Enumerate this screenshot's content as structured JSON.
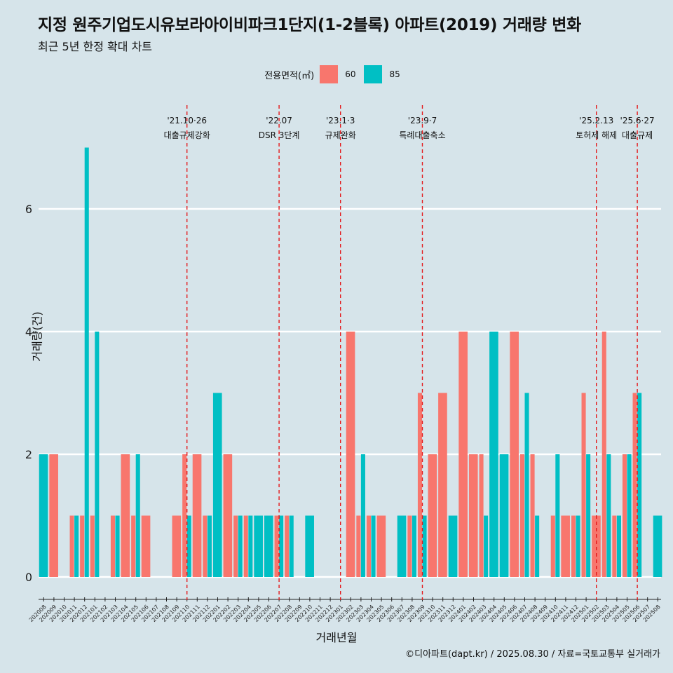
{
  "title": "지정 원주기업도시유보라아이비파크1단지(1-2블록) 아파트(2019) 거래량 변화",
  "subtitle": "최근 5년 한정 확대 차트",
  "caption": "©디아파트(dapt.kr) / 2025.08.30 / 자료=국토교통부 실거래가",
  "legend": {
    "title": "전용면적(㎡)",
    "items": [
      {
        "label": "60",
        "color": "#F8766D"
      },
      {
        "label": "85",
        "color": "#00BFC4"
      }
    ]
  },
  "chart_data": {
    "type": "bar",
    "title": "지정 원주기업도시유보라아이비파크1단지(1-2블록) 아파트(2019) 거래량 변화",
    "xlabel": "거래년월",
    "ylabel": "거래량(건)",
    "ylim": [
      0,
      7.5
    ],
    "yticks": [
      0,
      2,
      4,
      6
    ],
    "grid": true,
    "legend_position": "top",
    "categories": [
      "202008",
      "202009",
      "202010",
      "202011",
      "202012",
      "202101",
      "202102",
      "202103",
      "202104",
      "202105",
      "202106",
      "202107",
      "202108",
      "202109",
      "202110",
      "202111",
      "202112",
      "202201",
      "202202",
      "202203",
      "202204",
      "202205",
      "202206",
      "202207",
      "202208",
      "202209",
      "202210",
      "202211",
      "202212",
      "202301",
      "202302",
      "202303",
      "202304",
      "202305",
      "202306",
      "202307",
      "202308",
      "202309",
      "202310",
      "202311",
      "202312",
      "202401",
      "202402",
      "202403",
      "202404",
      "202405",
      "202406",
      "202407",
      "202408",
      "202409",
      "202410",
      "202411",
      "202412",
      "202501",
      "202502",
      "202503",
      "202504",
      "202505",
      "202506",
      "202507",
      "202508"
    ],
    "series": [
      {
        "name": "60",
        "color": "#F8766D",
        "values": [
          0,
          2,
          0,
          1,
          1,
          1,
          0,
          1,
          2,
          1,
          1,
          0,
          0,
          1,
          2,
          2,
          1,
          0,
          2,
          1,
          1,
          0,
          0,
          1,
          1,
          0,
          0,
          0,
          0,
          0,
          4,
          1,
          1,
          1,
          0,
          0,
          1,
          3,
          2,
          3,
          0,
          4,
          2,
          2,
          0,
          0,
          4,
          2,
          2,
          0,
          1,
          1,
          1,
          3,
          1,
          4,
          1,
          2,
          3,
          0,
          0
        ]
      },
      {
        "name": "85",
        "color": "#00BFC4",
        "values": [
          2,
          0,
          0,
          1,
          7,
          4,
          0,
          1,
          0,
          2,
          0,
          0,
          0,
          0,
          1,
          0,
          1,
          3,
          0,
          1,
          1,
          1,
          1,
          1,
          1,
          0,
          1,
          0,
          0,
          0,
          0,
          2,
          1,
          0,
          0,
          1,
          1,
          1,
          0,
          0,
          1,
          0,
          0,
          1,
          4,
          2,
          0,
          3,
          1,
          0,
          2,
          0,
          1,
          2,
          0,
          2,
          1,
          2,
          3,
          0,
          1
        ]
      }
    ],
    "events": [
      {
        "date": "'21.10·26",
        "label": "대출규제강화",
        "at": "202110",
        "offset": 0
      },
      {
        "date": "'22.07",
        "label": "DSR 3단계",
        "at": "202207",
        "offset": 0
      },
      {
        "date": "'23.1·3",
        "label": "규제완화",
        "at": "202301",
        "offset": 0
      },
      {
        "date": "'23.9·7",
        "label": "특례대출축소",
        "at": "202309",
        "offset": 0
      },
      {
        "date": "'25.2.13",
        "label": "토허제 해제",
        "at": "202502",
        "offset": 0
      },
      {
        "date": "'25.6·27",
        "label": "대출규제",
        "at": "202506",
        "offset": 0
      }
    ]
  }
}
